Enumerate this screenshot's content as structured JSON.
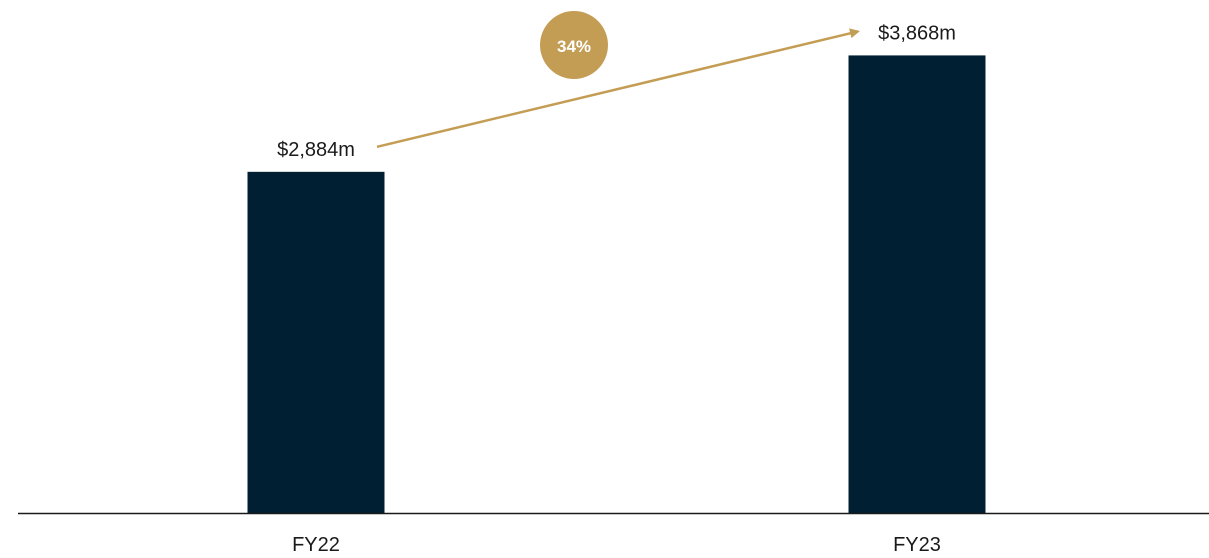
{
  "colors": {
    "bar": "#001f33",
    "accent": "#c49d55",
    "axis": "#1a1a1a",
    "text": "#1a1a1a",
    "badge_text": "#ffffff"
  },
  "chart_data": {
    "type": "bar",
    "categories": [
      "FY22",
      "FY23"
    ],
    "values": [
      2884,
      3868
    ],
    "data_labels": [
      "$2,884m",
      "$3,868m"
    ],
    "unit": "$m",
    "growth_label": "34%",
    "growth_annotation": "arrow from FY22 to FY23",
    "title": "",
    "xlabel": "",
    "ylabel": "",
    "ylim": [
      0,
      4000
    ],
    "grid": false,
    "legend": "none"
  }
}
